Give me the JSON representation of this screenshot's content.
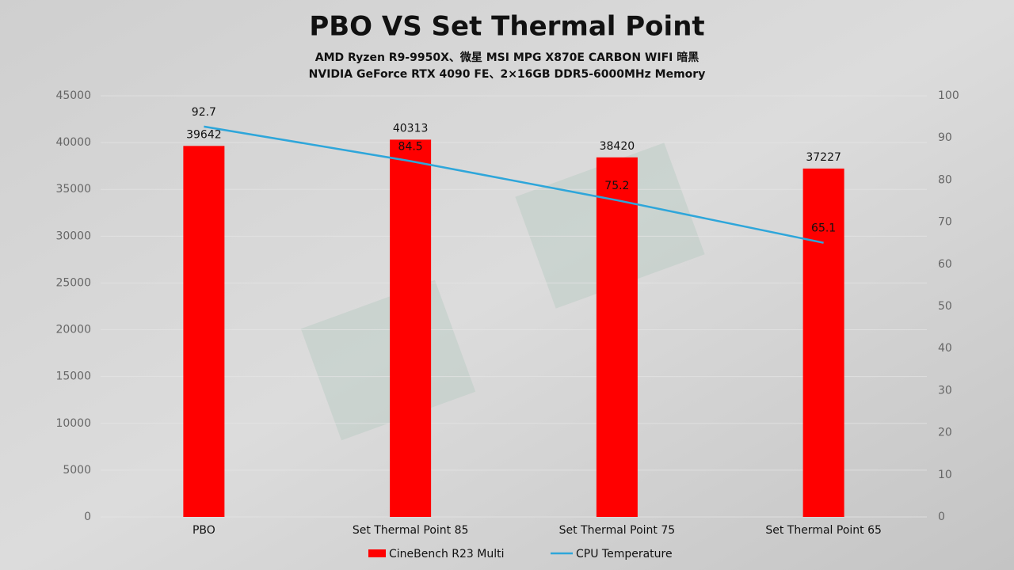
{
  "chart_data": {
    "type": "bar",
    "title": "PBO VS Set Thermal Point",
    "subtitle": [
      "AMD Ryzen R9-9950X、微星 MSI MPG X870E CARBON WIFI 暗黑",
      "NVIDIA GeForce RTX 4090 FE、2×16GB DDR5-6000MHz Memory"
    ],
    "categories": [
      "PBO",
      "Set Thermal Point 85",
      "Set Thermal Point 75",
      "Set Thermal Point 65"
    ],
    "series": [
      {
        "name": "CineBench R23 Multi",
        "type": "bar",
        "color": "#ff0000",
        "values": [
          39642,
          40313,
          38420,
          37227
        ]
      },
      {
        "name": "CPU Temperature",
        "type": "line",
        "axis": "y2",
        "color": "#2ea6da",
        "values": [
          92.7,
          84.5,
          75.2,
          65.1
        ]
      }
    ],
    "ylim": [
      0,
      45000
    ],
    "yticks": [
      0,
      5000,
      10000,
      15000,
      20000,
      25000,
      30000,
      35000,
      40000,
      45000
    ],
    "y2lim": [
      0,
      100
    ],
    "y2ticks": [
      0,
      10,
      20,
      30,
      40,
      50,
      60,
      70,
      80,
      90,
      100
    ],
    "grid": true,
    "legend": "bottom"
  }
}
